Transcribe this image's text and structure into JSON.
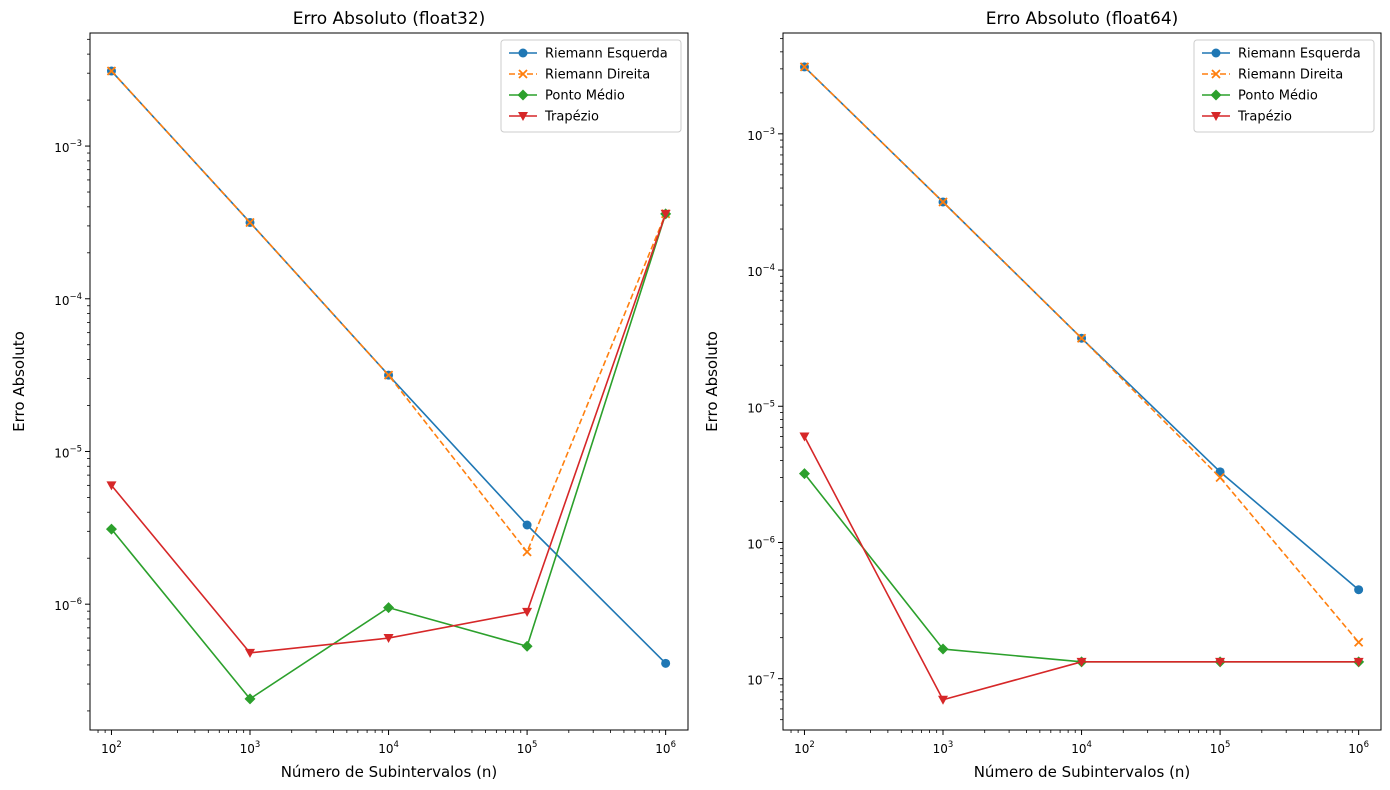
{
  "chart_data": [
    {
      "type": "line",
      "title": "Erro Absoluto (float32)",
      "xlabel": "Número de Subintervalos (n)",
      "ylabel": "Erro Absoluto",
      "xscale": "log",
      "yscale": "log",
      "x": [
        100,
        1000,
        10000,
        100000,
        1000000
      ],
      "xlim": [
        70,
        1450000
      ],
      "ylim": [
        1.5e-07,
        0.0055
      ],
      "x_ticks": [
        100,
        1000,
        10000,
        100000,
        1000000
      ],
      "x_tick_labels": [
        [
          "10",
          "2"
        ],
        [
          "10",
          "3"
        ],
        [
          "10",
          "4"
        ],
        [
          "10",
          "5"
        ],
        [
          "10",
          "6"
        ]
      ],
      "y_ticks": [
        1e-06,
        1e-05,
        0.0001,
        0.001
      ],
      "y_tick_labels": [
        [
          "10",
          "−6"
        ],
        [
          "10",
          "−5"
        ],
        [
          "10",
          "−4"
        ],
        [
          "10",
          "−3"
        ]
      ],
      "grid": false,
      "legend_position": "top-right",
      "series": [
        {
          "name": "Riemann Esquerda",
          "color": "#1f77b4",
          "marker": "circle",
          "dash": "solid",
          "values": [
            0.0031,
            0.000316,
            3.16e-05,
            3.3e-06,
            4.1e-07
          ]
        },
        {
          "name": "Riemann Direita",
          "color": "#ff7f0e",
          "marker": "x",
          "dash": "dashed",
          "values": [
            0.0031,
            0.000316,
            3.16e-05,
            2.2e-06,
            0.00036
          ]
        },
        {
          "name": "Ponto Médio",
          "color": "#2ca02c",
          "marker": "diamond",
          "dash": "solid",
          "values": [
            3.1e-06,
            2.4e-07,
            9.5e-07,
            5.3e-07,
            0.00036
          ]
        },
        {
          "name": "Trapézio",
          "color": "#d62728",
          "marker": "triangle-down",
          "dash": "solid",
          "values": [
            6e-06,
            4.8e-07,
            6e-07,
            8.9e-07,
            0.00036
          ]
        }
      ]
    },
    {
      "type": "line",
      "title": "Erro Absoluto (float64)",
      "xlabel": "Número de Subintervalos (n)",
      "ylabel": "Erro Absoluto",
      "xscale": "log",
      "yscale": "log",
      "x": [
        100,
        1000,
        10000,
        100000,
        1000000
      ],
      "xlim": [
        70,
        1450000
      ],
      "ylim": [
        4.2e-08,
        0.0055
      ],
      "x_ticks": [
        100,
        1000,
        10000,
        100000,
        1000000
      ],
      "x_tick_labels": [
        [
          "10",
          "2"
        ],
        [
          "10",
          "3"
        ],
        [
          "10",
          "4"
        ],
        [
          "10",
          "5"
        ],
        [
          "10",
          "6"
        ]
      ],
      "y_ticks": [
        1e-07,
        1e-06,
        1e-05,
        0.0001,
        0.001
      ],
      "y_tick_labels": [
        [
          "10",
          "−7"
        ],
        [
          "10",
          "−6"
        ],
        [
          "10",
          "−5"
        ],
        [
          "10",
          "−4"
        ],
        [
          "10",
          "−3"
        ]
      ],
      "grid": false,
      "legend_position": "top-right",
      "series": [
        {
          "name": "Riemann Esquerda",
          "color": "#1f77b4",
          "marker": "circle",
          "dash": "solid",
          "values": [
            0.0031,
            0.000316,
            3.16e-05,
            3.3e-06,
            4.5e-07
          ]
        },
        {
          "name": "Riemann Direita",
          "color": "#ff7f0e",
          "marker": "x",
          "dash": "dashed",
          "values": [
            0.0031,
            0.000316,
            3.16e-05,
            3e-06,
            1.85e-07
          ]
        },
        {
          "name": "Ponto Médio",
          "color": "#2ca02c",
          "marker": "diamond",
          "dash": "solid",
          "values": [
            3.2e-06,
            1.65e-07,
            1.33e-07,
            1.33e-07,
            1.33e-07
          ]
        },
        {
          "name": "Trapézio",
          "color": "#d62728",
          "marker": "triangle-down",
          "dash": "solid",
          "values": [
            6e-06,
            7e-08,
            1.33e-07,
            1.33e-07,
            1.33e-07
          ]
        }
      ]
    }
  ]
}
